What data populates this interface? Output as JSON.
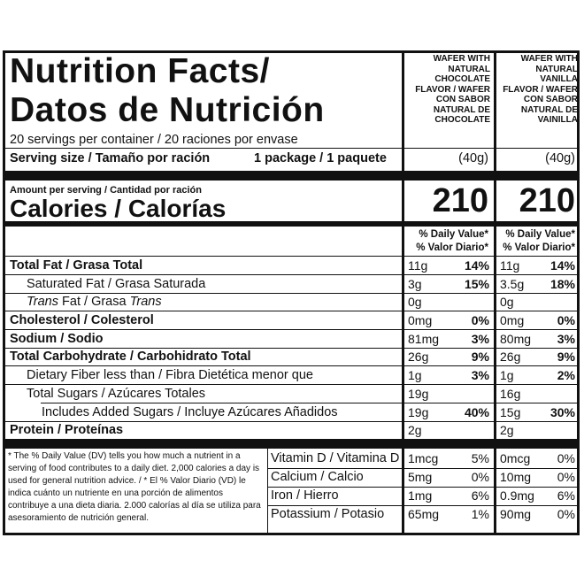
{
  "header": {
    "title_line1": "Nutrition Facts/",
    "title_line2": "Datos de Nutrición",
    "col1": "WAFER WITH\nNATURAL\nCHOCOLATE\nFLAVOR / WAFER\nCON SABOR\nNATURAL DE\nCHOCOLATE",
    "col2": "WAFER WITH\nNATURAL\nVANILLA\nFLAVOR / WAFER\nCON SABOR\nNATURAL DE\nVAINILLA"
  },
  "servings": {
    "per_container": "20 servings per container / 20 raciones por envase",
    "size_label": "Serving size / Tamaño por ración",
    "size_value": "1 package / 1 paquete",
    "col1_grams": "(40g)",
    "col2_grams": "(40g)"
  },
  "calories": {
    "amount_label": "Amount per serving / Cantidad por ración",
    "label": "Calories / Calorías",
    "col1": "210",
    "col2": "210"
  },
  "dv_header": {
    "line1": "% Daily Value*",
    "line2": "% Valor Diario*"
  },
  "nutrients": [
    {
      "label": "Total Fat / Grasa Total",
      "c1_amt": "11g",
      "c1_dv": "14%",
      "c2_amt": "11g",
      "c2_dv": "14%"
    },
    {
      "label": "Saturated Fat / Grasa Saturada",
      "c1_amt": "3g",
      "c1_dv": "15%",
      "c2_amt": "3.5g",
      "c2_dv": "18%"
    },
    {
      "label_a": "Trans",
      "label_b": " Fat / Grasa ",
      "label_c": "Trans",
      "c1_amt": "0g",
      "c1_dv": "",
      "c2_amt": "0g",
      "c2_dv": ""
    },
    {
      "label": "Cholesterol / Colesterol",
      "c1_amt": "0mg",
      "c1_dv": "0%",
      "c2_amt": "0mg",
      "c2_dv": "0%"
    },
    {
      "label": "Sodium / Sodio",
      "c1_amt": "81mg",
      "c1_dv": "3%",
      "c2_amt": "80mg",
      "c2_dv": "3%"
    },
    {
      "label": "Total Carbohydrate / Carbohidrato Total",
      "c1_amt": "26g",
      "c1_dv": "9%",
      "c2_amt": "26g",
      "c2_dv": "9%"
    },
    {
      "label": "Dietary Fiber less than / Fibra Dietética menor que",
      "c1_amt": "1g",
      "c1_dv": "3%",
      "c2_amt": "1g",
      "c2_dv": "2%"
    },
    {
      "label": "Total Sugars / Azúcares Totales",
      "c1_amt": "19g",
      "c1_dv": "",
      "c2_amt": "16g",
      "c2_dv": ""
    },
    {
      "label": "Includes Added Sugars / Incluye Azúcares Añadidos",
      "c1_amt": "19g",
      "c1_dv": "40%",
      "c2_amt": "15g",
      "c2_dv": "30%"
    },
    {
      "label": "Protein / Proteínas",
      "c1_amt": "2g",
      "c1_dv": "",
      "c2_amt": "2g",
      "c2_dv": ""
    }
  ],
  "footnote": "* The % Daily Value (DV) tells you how much a nutrient in a serving of food contributes to a daily diet. 2,000 calories a day is used for general nutrition advice. / * El % Valor Diario (VD) le indica cuánto un nutriente en una porción de alimentos contribuye a una dieta diaria. 2.000 calorías al día se utiliza para asesoramiento de nutrición general.",
  "vitamins": [
    {
      "label": "Vitamin D / Vitamina D",
      "c1_amt": "1mcg",
      "c1_dv": "5%",
      "c2_amt": "0mcg",
      "c2_dv": "0%"
    },
    {
      "label": "Calcium / Calcio",
      "c1_amt": "5mg",
      "c1_dv": "0%",
      "c2_amt": "10mg",
      "c2_dv": "0%"
    },
    {
      "label": "Iron / Hierro",
      "c1_amt": "1mg",
      "c1_dv": "6%",
      "c2_amt": "0.9mg",
      "c2_dv": "6%"
    },
    {
      "label": "Potassium / Potasio",
      "c1_amt": "65mg",
      "c1_dv": "1%",
      "c2_amt": "90mg",
      "c2_dv": "0%"
    }
  ]
}
